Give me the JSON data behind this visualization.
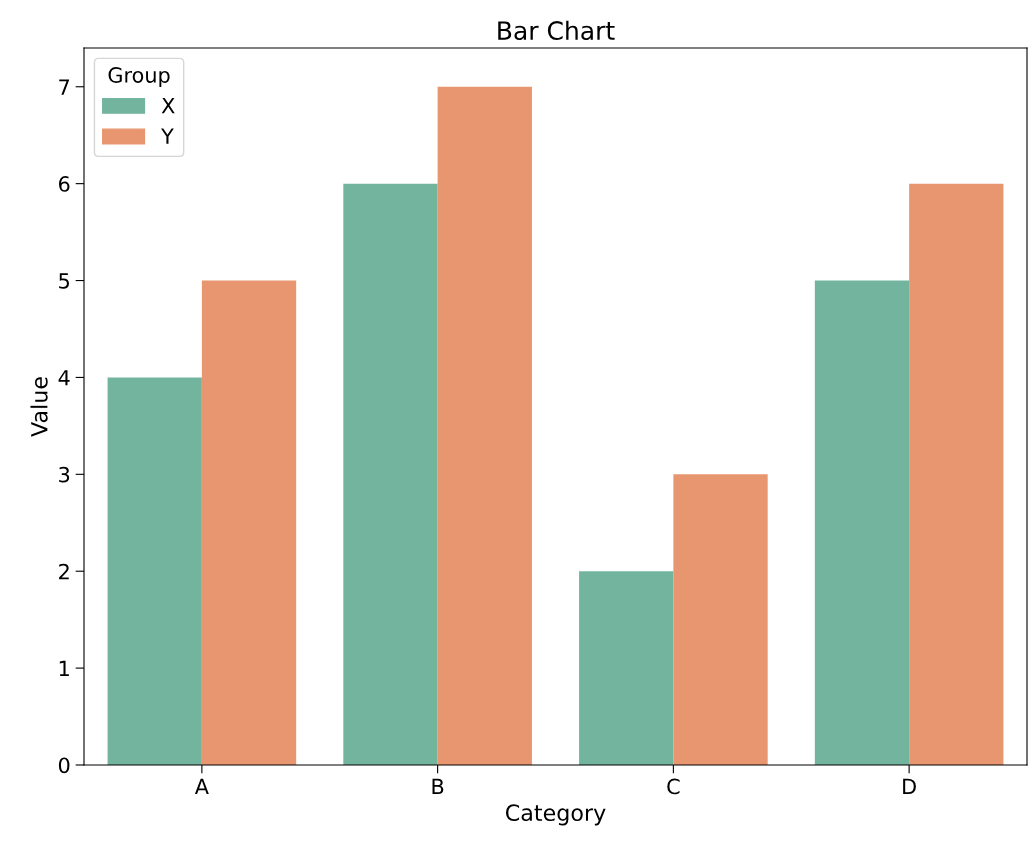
{
  "chart_data": {
    "type": "bar",
    "title": "Bar Chart",
    "xlabel": "Category",
    "ylabel": "Value",
    "legend_title": "Group",
    "legend": "top left",
    "grid": false,
    "categories": [
      "A",
      "B",
      "C",
      "D"
    ],
    "series": [
      {
        "name": "X",
        "color": "#73b49f",
        "values": [
          4,
          6,
          2,
          5
        ]
      },
      {
        "name": "Y",
        "color": "#e8966f",
        "values": [
          5,
          7,
          3,
          6
        ]
      }
    ],
    "ylim": [
      0,
      7.4
    ],
    "yticks": [
      0,
      1,
      2,
      3,
      4,
      5,
      6,
      7
    ]
  }
}
